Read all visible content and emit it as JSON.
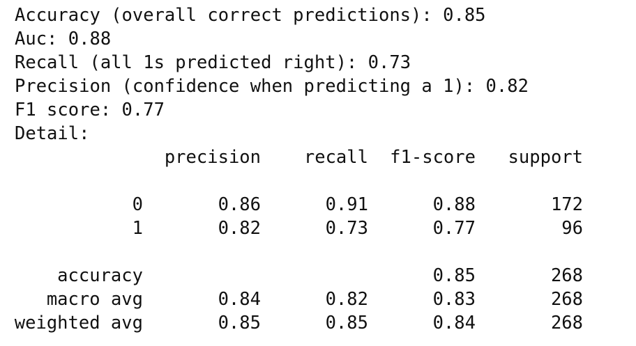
{
  "metrics": [
    {
      "label": "Accuracy (overall correct predictions):",
      "value": 0.85
    },
    {
      "label": "Auc:",
      "value": 0.88
    },
    {
      "label": "Recall (all 1s predicted right):",
      "value": 0.73
    },
    {
      "label": "Precision (confidence when predicting a 1):",
      "value": 0.82
    },
    {
      "label": "F1 score:",
      "value": 0.77
    }
  ],
  "detail_label": "Detail:",
  "report": {
    "columns": [
      "precision",
      "recall",
      "f1-score",
      "support"
    ],
    "classes": [
      {
        "label": "0",
        "cells": [
          0.86,
          0.91,
          0.88,
          172
        ]
      },
      {
        "label": "1",
        "cells": [
          0.82,
          0.73,
          0.77,
          96
        ]
      }
    ],
    "averages": [
      {
        "label": "accuracy",
        "cells": [
          null,
          null,
          0.85,
          268
        ]
      },
      {
        "label": "macro avg",
        "cells": [
          0.84,
          0.82,
          0.83,
          268
        ]
      },
      {
        "label": "weighted avg",
        "cells": [
          0.85,
          0.85,
          0.84,
          268
        ]
      }
    ]
  }
}
